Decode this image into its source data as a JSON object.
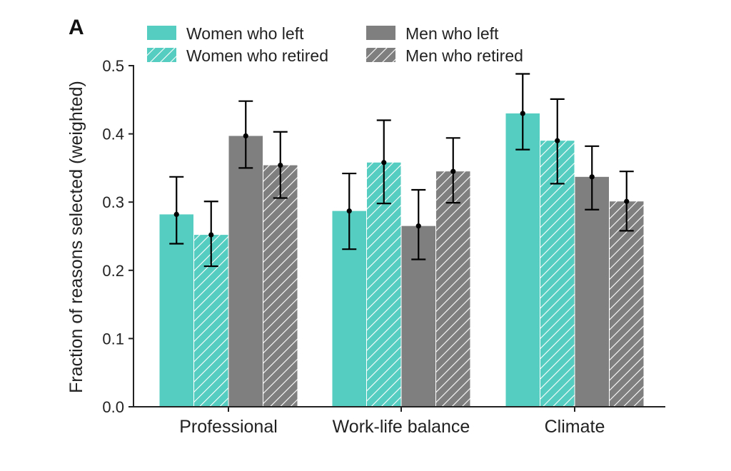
{
  "panel_label": "A",
  "chart_data": {
    "type": "bar",
    "title": "",
    "xlabel": "",
    "ylabel": "Fraction of reasons selected (weighted)",
    "ylim": [
      0,
      0.5
    ],
    "yticks": [
      "0.0",
      "0.1",
      "0.2",
      "0.3",
      "0.4",
      "0.5"
    ],
    "categories": [
      "Professional",
      "Work-life balance",
      "Climate"
    ],
    "legend_position": "top",
    "series": [
      {
        "name": "Women who left",
        "color": "#55cdc0",
        "hatched": false,
        "values": [
          0.282,
          0.287,
          0.43
        ],
        "err_low": [
          0.239,
          0.231,
          0.377
        ],
        "err_high": [
          0.337,
          0.342,
          0.488
        ]
      },
      {
        "name": "Women who retired",
        "color": "#55cdc0",
        "hatched": true,
        "values": [
          0.252,
          0.358,
          0.39
        ],
        "err_low": [
          0.206,
          0.298,
          0.327
        ],
        "err_high": [
          0.301,
          0.42,
          0.451
        ]
      },
      {
        "name": "Men who left",
        "color": "#7f7f7f",
        "hatched": false,
        "values": [
          0.397,
          0.265,
          0.337
        ],
        "err_low": [
          0.35,
          0.216,
          0.289
        ],
        "err_high": [
          0.448,
          0.318,
          0.382
        ]
      },
      {
        "name": "Men who retired",
        "color": "#7f7f7f",
        "hatched": true,
        "values": [
          0.354,
          0.345,
          0.301
        ],
        "err_low": [
          0.306,
          0.299,
          0.258
        ],
        "err_high": [
          0.403,
          0.394,
          0.345
        ]
      }
    ]
  }
}
